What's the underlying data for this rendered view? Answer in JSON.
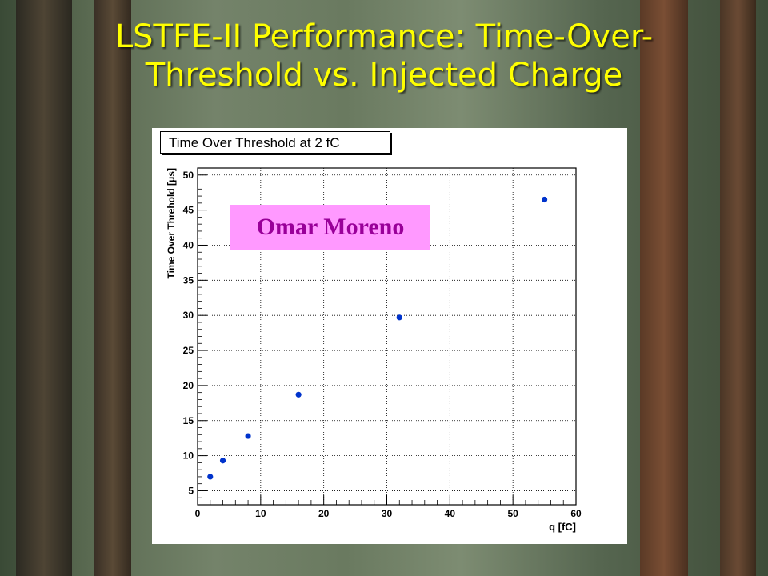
{
  "slide": {
    "title_line1": "LSTFE-II Performance: Time-Over-",
    "title_line2": "Threshold vs. Injected Charge"
  },
  "overlay_label": "Omar Moreno",
  "colors": {
    "title": "#ffff00",
    "marker": "#0033cc",
    "label_bg": "#ff99ff",
    "label_text": "#990099"
  },
  "chart_data": {
    "type": "scatter",
    "title": "Time Over Threshold at 2 fC",
    "xlabel": "q [fC]",
    "ylabel": "Time Over Threhold [μs]",
    "xlim": [
      0,
      60
    ],
    "ylim": [
      3,
      51
    ],
    "xticks": [
      0,
      10,
      20,
      30,
      40,
      50,
      60
    ],
    "yticks": [
      5,
      10,
      15,
      20,
      25,
      30,
      35,
      40,
      45,
      50
    ],
    "grid": true,
    "x": [
      2,
      4,
      8,
      16,
      32,
      55
    ],
    "y": [
      7.0,
      9.3,
      12.8,
      18.7,
      29.7,
      46.5
    ]
  }
}
